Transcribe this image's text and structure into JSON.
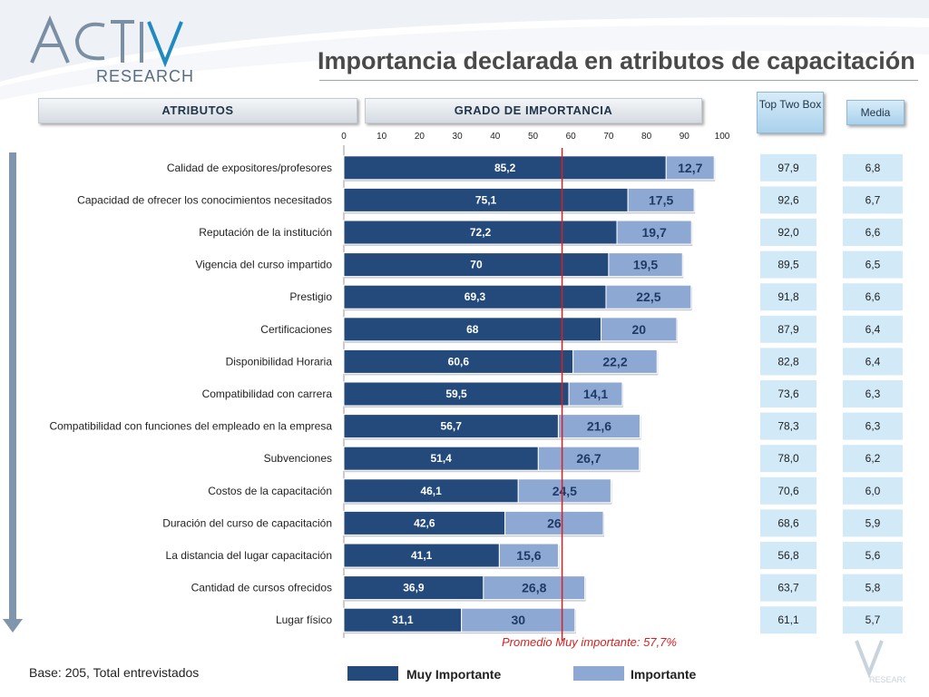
{
  "brand": {
    "name": "ACTIVA",
    "sub": "RESEARCH"
  },
  "title": "Importancia declarada en atributos de capacitación",
  "headers": {
    "attributes": "ATRIBUTOS",
    "grade": "GRADO DE IMPORTANCIA",
    "top_two_box": "Top Two Box",
    "media": "Media"
  },
  "colors": {
    "muy_importante": "#244a7c",
    "importante": "#8ea8d4",
    "average_line": "#d92020"
  },
  "chart_data": {
    "type": "bar",
    "orientation": "horizontal",
    "stacked": true,
    "xlim": [
      0,
      100
    ],
    "xticks": [
      0,
      10,
      20,
      30,
      40,
      50,
      60,
      70,
      80,
      90,
      100
    ],
    "categories": [
      "Calidad de expositores/profesores",
      "Capacidad de ofrecer los conocimientos necesitados",
      "Reputación de la institución",
      "Vigencia del curso impartido",
      "Prestigio",
      "Certificaciones",
      "Disponibilidad Horaria",
      "Compatibilidad con carrera",
      "Compatibilidad con funciones del empleado en la empresa",
      "Subvenciones",
      "Costos de la capacitación",
      "Duración del curso de capacitación",
      "La distancia del lugar capacitación",
      "Cantidad de cursos ofrecidos",
      "Lugar físico"
    ],
    "series": [
      {
        "name": "Muy Importante",
        "values": [
          85.2,
          75.1,
          72.2,
          70,
          69.3,
          68,
          60.6,
          59.5,
          56.7,
          51.4,
          46.1,
          42.6,
          41.1,
          36.9,
          31.1
        ],
        "labels": [
          "85,2",
          "75,1",
          "72,2",
          "70",
          "69,3",
          "68",
          "60,6",
          "59,5",
          "56,7",
          "51,4",
          "46,1",
          "42,6",
          "41,1",
          "36,9",
          "31,1"
        ]
      },
      {
        "name": "Importante",
        "values": [
          12.7,
          17.5,
          19.7,
          19.5,
          22.5,
          20,
          22.2,
          14.1,
          21.6,
          26.7,
          24.5,
          26,
          15.6,
          26.8,
          30
        ],
        "labels": [
          "12,7",
          "17,5",
          "19,7",
          "19,5",
          "22,5",
          "20",
          "22,2",
          "14,1",
          "21,6",
          "26,7",
          "24,5",
          "26",
          "15,6",
          "26,8",
          "30"
        ]
      }
    ],
    "top_two_box": [
      "97,9",
      "92,6",
      "92,0",
      "89,5",
      "91,8",
      "87,9",
      "82,8",
      "73,6",
      "78,3",
      "78,0",
      "70,6",
      "68,6",
      "56,8",
      "63,7",
      "61,1"
    ],
    "media": [
      "6,8",
      "6,7",
      "6,6",
      "6,5",
      "6,6",
      "6,4",
      "6,4",
      "6,3",
      "6,3",
      "6,2",
      "6,0",
      "5,9",
      "5,6",
      "5,8",
      "5,7"
    ],
    "average_line": {
      "value": 57.7,
      "label": "Promedio Muy importante: 57,7%"
    }
  },
  "footer": {
    "base": "Base: 205, Total entrevistados",
    "footer_logo_text": "RESEARCH"
  }
}
